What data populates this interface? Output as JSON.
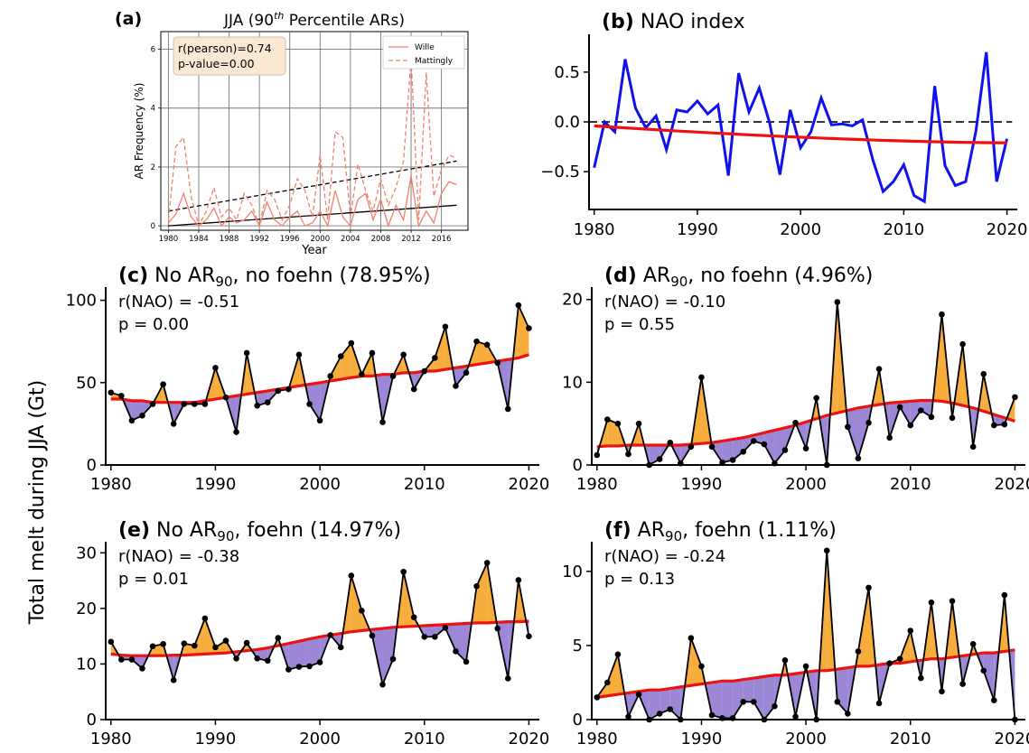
{
  "figure": {
    "ylabel_shared": "Total melt during JJA (Gt)",
    "colors": {
      "above": "#f6ad3b",
      "below": "#9b87d6",
      "trend": "#ee1111",
      "series": "#000000",
      "nao": "#1111ee",
      "wille": "#f08070",
      "mattingly": "#f08070",
      "statsbox": "#fbe8d3"
    }
  },
  "chart_data": [
    {
      "id": "a",
      "type": "line",
      "panel_label": "(a)",
      "title": "JJA (90th Percentile ARs)",
      "title_base": "JJA (90",
      "title_sup": "th",
      "title_tail": " Percentile ARs)",
      "xlabel": "Year",
      "ylabel": "AR Frequency (%)",
      "xlim": [
        1979,
        2019.5
      ],
      "ylim": [
        -0.15,
        6.6
      ],
      "xticks": [
        1980,
        1984,
        1988,
        1992,
        1996,
        2000,
        2004,
        2008,
        2012,
        2016
      ],
      "yticks": [
        0,
        2,
        4,
        6
      ],
      "grid": true,
      "legend": "top-right",
      "stats_box": [
        "r(pearson)=0.74",
        "p-value=0.00"
      ],
      "x": [
        1980,
        1981,
        1982,
        1983,
        1984,
        1985,
        1986,
        1987,
        1988,
        1989,
        1990,
        1991,
        1992,
        1993,
        1994,
        1995,
        1996,
        1997,
        1998,
        1999,
        2000,
        2001,
        2002,
        2003,
        2004,
        2005,
        2006,
        2007,
        2008,
        2009,
        2010,
        2011,
        2012,
        2013,
        2014,
        2015,
        2016,
        2017,
        2018
      ],
      "series": [
        {
          "name": "Wille",
          "style": "solid",
          "values": [
            0.1,
            0.4,
            1.1,
            0.3,
            0.0,
            0.2,
            0.6,
            0.0,
            0.3,
            0.1,
            0.2,
            0.5,
            0.0,
            0.8,
            0.2,
            0.0,
            0.3,
            0.5,
            0.0,
            0.1,
            0.5,
            0.0,
            1.2,
            0.3,
            0.0,
            0.9,
            1.1,
            0.2,
            0.9,
            0.0,
            0.7,
            0.2,
            1.7,
            0.0,
            0.5,
            0.1,
            1.1,
            1.5,
            1.4
          ],
          "trend": [
            0.0,
            0.7
          ]
        },
        {
          "name": "Mattingly",
          "style": "dashed",
          "values": [
            0.2,
            2.7,
            3.0,
            1.0,
            0.0,
            0.5,
            1.3,
            0.3,
            0.6,
            0.2,
            1.1,
            0.7,
            0.0,
            1.2,
            0.9,
            0.2,
            0.7,
            1.6,
            1.2,
            0.3,
            2.4,
            0.2,
            3.2,
            3.0,
            0.3,
            2.1,
            1.2,
            0.5,
            1.6,
            0.7,
            1.3,
            2.2,
            5.7,
            0.2,
            5.2,
            1.0,
            1.9,
            2.4,
            2.3
          ],
          "trend": [
            0.5,
            2.2
          ]
        }
      ]
    },
    {
      "id": "b",
      "type": "line",
      "panel_label": "(b)",
      "title": "NAO index",
      "xlim": [
        1979.5,
        2021
      ],
      "ylim": [
        -0.88,
        0.88
      ],
      "xticks": [
        1980,
        1990,
        2000,
        2010,
        2020
      ],
      "yticks": [
        -0.5,
        0.0,
        0.5
      ],
      "ytick_labels": [
        "−0.5",
        "0.0",
        "0.5"
      ],
      "grid": false,
      "reference_line": 0.0,
      "x": [
        1980,
        1981,
        1982,
        1983,
        1984,
        1985,
        1986,
        1987,
        1988,
        1989,
        1990,
        1991,
        1992,
        1993,
        1994,
        1995,
        1996,
        1997,
        1998,
        1999,
        2000,
        2001,
        2002,
        2003,
        2004,
        2005,
        2006,
        2007,
        2008,
        2009,
        2010,
        2011,
        2012,
        2013,
        2014,
        2015,
        2016,
        2017,
        2018,
        2019,
        2020
      ],
      "series": [
        {
          "values": [
            -0.46,
            0.0,
            -0.1,
            0.63,
            0.14,
            -0.06,
            0.06,
            -0.28,
            0.12,
            0.1,
            0.21,
            0.08,
            0.17,
            -0.54,
            0.49,
            0.1,
            0.34,
            -0.01,
            -0.53,
            0.12,
            -0.26,
            -0.1,
            0.24,
            -0.03,
            -0.02,
            -0.04,
            0.02,
            -0.38,
            -0.7,
            -0.6,
            -0.43,
            -0.74,
            -0.8,
            0.36,
            -0.44,
            -0.64,
            -0.6,
            -0.09,
            0.7,
            -0.6,
            -0.17
          ]
        }
      ],
      "trend_endpoints": [
        -0.04,
        -0.21
      ]
    },
    {
      "id": "c",
      "type": "area",
      "panel_label": "(c)",
      "title_parts": {
        "pre": "No AR",
        "sub": "90",
        "post": ", no foehn (78.95%)"
      },
      "title": "No AR90, no foehn (78.95%)",
      "stats": [
        "r(NAO) = -0.51",
        "p = 0.00"
      ],
      "xlim": [
        1979.5,
        2021
      ],
      "ylim": [
        0,
        108
      ],
      "xticks": [
        1980,
        1990,
        2000,
        2010,
        2020
      ],
      "yticks": [
        0,
        50,
        100
      ],
      "x": [
        1980,
        1981,
        1982,
        1983,
        1984,
        1985,
        1986,
        1987,
        1988,
        1989,
        1990,
        1991,
        1992,
        1993,
        1994,
        1995,
        1996,
        1997,
        1998,
        1999,
        2000,
        2001,
        2002,
        2003,
        2004,
        2005,
        2006,
        2007,
        2008,
        2009,
        2010,
        2011,
        2012,
        2013,
        2014,
        2015,
        2016,
        2017,
        2018,
        2019,
        2020
      ],
      "values": [
        44,
        42,
        27,
        30,
        37,
        49,
        25,
        37,
        37,
        37,
        59,
        41,
        20,
        68,
        36,
        38,
        45,
        46,
        67,
        37,
        27,
        54,
        66,
        74,
        55,
        68,
        26,
        54,
        67,
        46,
        57,
        65,
        84,
        48,
        56,
        75,
        73,
        62,
        34,
        97,
        83
      ],
      "trend": [
        40,
        40,
        39,
        39,
        38,
        38,
        38,
        38,
        38,
        39,
        40,
        41,
        42,
        43,
        44,
        45,
        46,
        47,
        48,
        49,
        50,
        51,
        52,
        53,
        54,
        54,
        55,
        55,
        56,
        56,
        57,
        57,
        58,
        59,
        60,
        61,
        62,
        63,
        64,
        65,
        67
      ]
    },
    {
      "id": "d",
      "type": "area",
      "panel_label": "(d)",
      "title_parts": {
        "pre": "AR",
        "sub": "90",
        "post": ", no foehn (4.96%)"
      },
      "title": "AR90, no foehn (4.96%)",
      "stats": [
        "r(NAO) = -0.10",
        "p = 0.55"
      ],
      "xlim": [
        1979.5,
        2021
      ],
      "ylim": [
        0,
        21.5
      ],
      "xticks": [
        1980,
        1990,
        2000,
        2010,
        2020
      ],
      "yticks": [
        0,
        10,
        20
      ],
      "x": [
        1980,
        1981,
        1982,
        1983,
        1984,
        1985,
        1986,
        1987,
        1988,
        1989,
        1990,
        1991,
        1992,
        1993,
        1994,
        1995,
        1996,
        1997,
        1998,
        1999,
        2000,
        2001,
        2002,
        2003,
        2004,
        2005,
        2006,
        2007,
        2008,
        2009,
        2010,
        2011,
        2012,
        2013,
        2014,
        2015,
        2016,
        2017,
        2018,
        2019,
        2020
      ],
      "values": [
        1.2,
        5.5,
        5.0,
        1.3,
        5.0,
        0.0,
        0.7,
        2.7,
        0.2,
        2.2,
        10.6,
        2.2,
        0.3,
        0.6,
        1.6,
        2.9,
        2.5,
        0.2,
        1.8,
        5.1,
        2.0,
        8.1,
        0.0,
        19.7,
        4.6,
        0.8,
        5.1,
        11.6,
        3.3,
        7.0,
        4.8,
        6.6,
        5.8,
        18.2,
        5.7,
        14.6,
        2.2,
        11.0,
        4.8,
        4.9,
        8.2
      ],
      "trend": [
        2.2,
        2.3,
        2.3,
        2.4,
        2.4,
        2.4,
        2.4,
        2.4,
        2.4,
        2.5,
        2.6,
        2.7,
        2.9,
        3.1,
        3.3,
        3.6,
        3.9,
        4.2,
        4.5,
        4.8,
        5.2,
        5.6,
        6.0,
        6.3,
        6.6,
        6.9,
        7.1,
        7.3,
        7.5,
        7.6,
        7.7,
        7.8,
        7.8,
        7.7,
        7.5,
        7.2,
        6.9,
        6.5,
        6.1,
        5.7,
        5.3
      ]
    },
    {
      "id": "e",
      "type": "area",
      "panel_label": "(e)",
      "title_parts": {
        "pre": "No AR",
        "sub": "90",
        "post": ", foehn (14.97%)"
      },
      "title": "No AR90, foehn (14.97%)",
      "stats": [
        "r(NAO) = -0.38",
        "p = 0.01"
      ],
      "xlim": [
        1979.5,
        2021
      ],
      "ylim": [
        0,
        32
      ],
      "xticks": [
        1980,
        1990,
        2000,
        2010,
        2020
      ],
      "yticks": [
        0,
        10,
        20,
        30
      ],
      "x": [
        1980,
        1981,
        1982,
        1983,
        1984,
        1985,
        1986,
        1987,
        1988,
        1989,
        1990,
        1991,
        1992,
        1993,
        1994,
        1995,
        1996,
        1997,
        1998,
        1999,
        2000,
        2001,
        2002,
        2003,
        2004,
        2005,
        2006,
        2007,
        2008,
        2009,
        2010,
        2011,
        2012,
        2013,
        2014,
        2015,
        2016,
        2017,
        2018,
        2019,
        2020
      ],
      "values": [
        14.0,
        10.8,
        10.8,
        9.2,
        13.2,
        13.6,
        7.1,
        13.7,
        13.3,
        18.2,
        13.0,
        14.2,
        11.0,
        13.8,
        11.0,
        10.6,
        14.7,
        9.0,
        9.5,
        9.6,
        10.3,
        15.2,
        13.0,
        25.9,
        19.6,
        15.1,
        6.3,
        10.9,
        26.6,
        18.4,
        14.9,
        14.9,
        16.5,
        12.3,
        10.4,
        24.0,
        28.2,
        16.4,
        7.4,
        25.1,
        15.0
      ],
      "trend": [
        11.8,
        11.6,
        11.5,
        11.5,
        11.5,
        11.5,
        11.6,
        11.6,
        11.7,
        11.8,
        11.9,
        12.0,
        12.2,
        12.4,
        12.6,
        12.9,
        13.3,
        13.7,
        14.1,
        14.5,
        14.9,
        15.2,
        15.5,
        15.8,
        16.0,
        16.2,
        16.4,
        16.6,
        16.7,
        16.8,
        16.9,
        17.0,
        17.1,
        17.2,
        17.3,
        17.4,
        17.4,
        17.5,
        17.6,
        17.6,
        17.7
      ]
    },
    {
      "id": "f",
      "type": "area",
      "panel_label": "(f)",
      "title_parts": {
        "pre": "AR",
        "sub": "90",
        "post": ", foehn (1.11%)"
      },
      "title": "AR90, foehn (1.11%)",
      "stats": [
        "r(NAO) = -0.24",
        "p = 0.13"
      ],
      "xlim": [
        1979.5,
        2021
      ],
      "ylim": [
        0,
        12
      ],
      "xticks": [
        1980,
        1990,
        2000,
        2010,
        2020
      ],
      "yticks": [
        0,
        5,
        10
      ],
      "x": [
        1980,
        1981,
        1982,
        1983,
        1984,
        1985,
        1986,
        1987,
        1988,
        1989,
        1990,
        1991,
        1992,
        1993,
        1994,
        1995,
        1996,
        1997,
        1998,
        1999,
        2000,
        2001,
        2002,
        2003,
        2004,
        2005,
        2006,
        2007,
        2008,
        2009,
        2010,
        2011,
        2012,
        2013,
        2014,
        2015,
        2016,
        2017,
        2018,
        2019,
        2020
      ],
      "values": [
        1.5,
        2.5,
        4.4,
        0.2,
        1.7,
        0.0,
        0.4,
        0.7,
        0.0,
        5.5,
        3.6,
        0.3,
        0.1,
        0.1,
        1.2,
        1.2,
        0.0,
        0.9,
        4.0,
        0.2,
        3.6,
        0.0,
        11.4,
        1.2,
        0.4,
        4.6,
        8.9,
        1.1,
        3.8,
        4.1,
        6.0,
        2.8,
        7.9,
        1.9,
        8.0,
        2.4,
        5.1,
        3.3,
        1.3,
        8.4,
        0.0
      ],
      "trend": [
        1.5,
        1.6,
        1.7,
        1.8,
        1.9,
        2.0,
        2.0,
        2.1,
        2.2,
        2.3,
        2.4,
        2.5,
        2.6,
        2.6,
        2.7,
        2.8,
        2.9,
        3.0,
        3.0,
        3.1,
        3.2,
        3.3,
        3.3,
        3.4,
        3.5,
        3.6,
        3.6,
        3.7,
        3.8,
        3.8,
        3.9,
        4.0,
        4.1,
        4.1,
        4.2,
        4.3,
        4.4,
        4.5,
        4.5,
        4.6,
        4.7
      ]
    }
  ]
}
